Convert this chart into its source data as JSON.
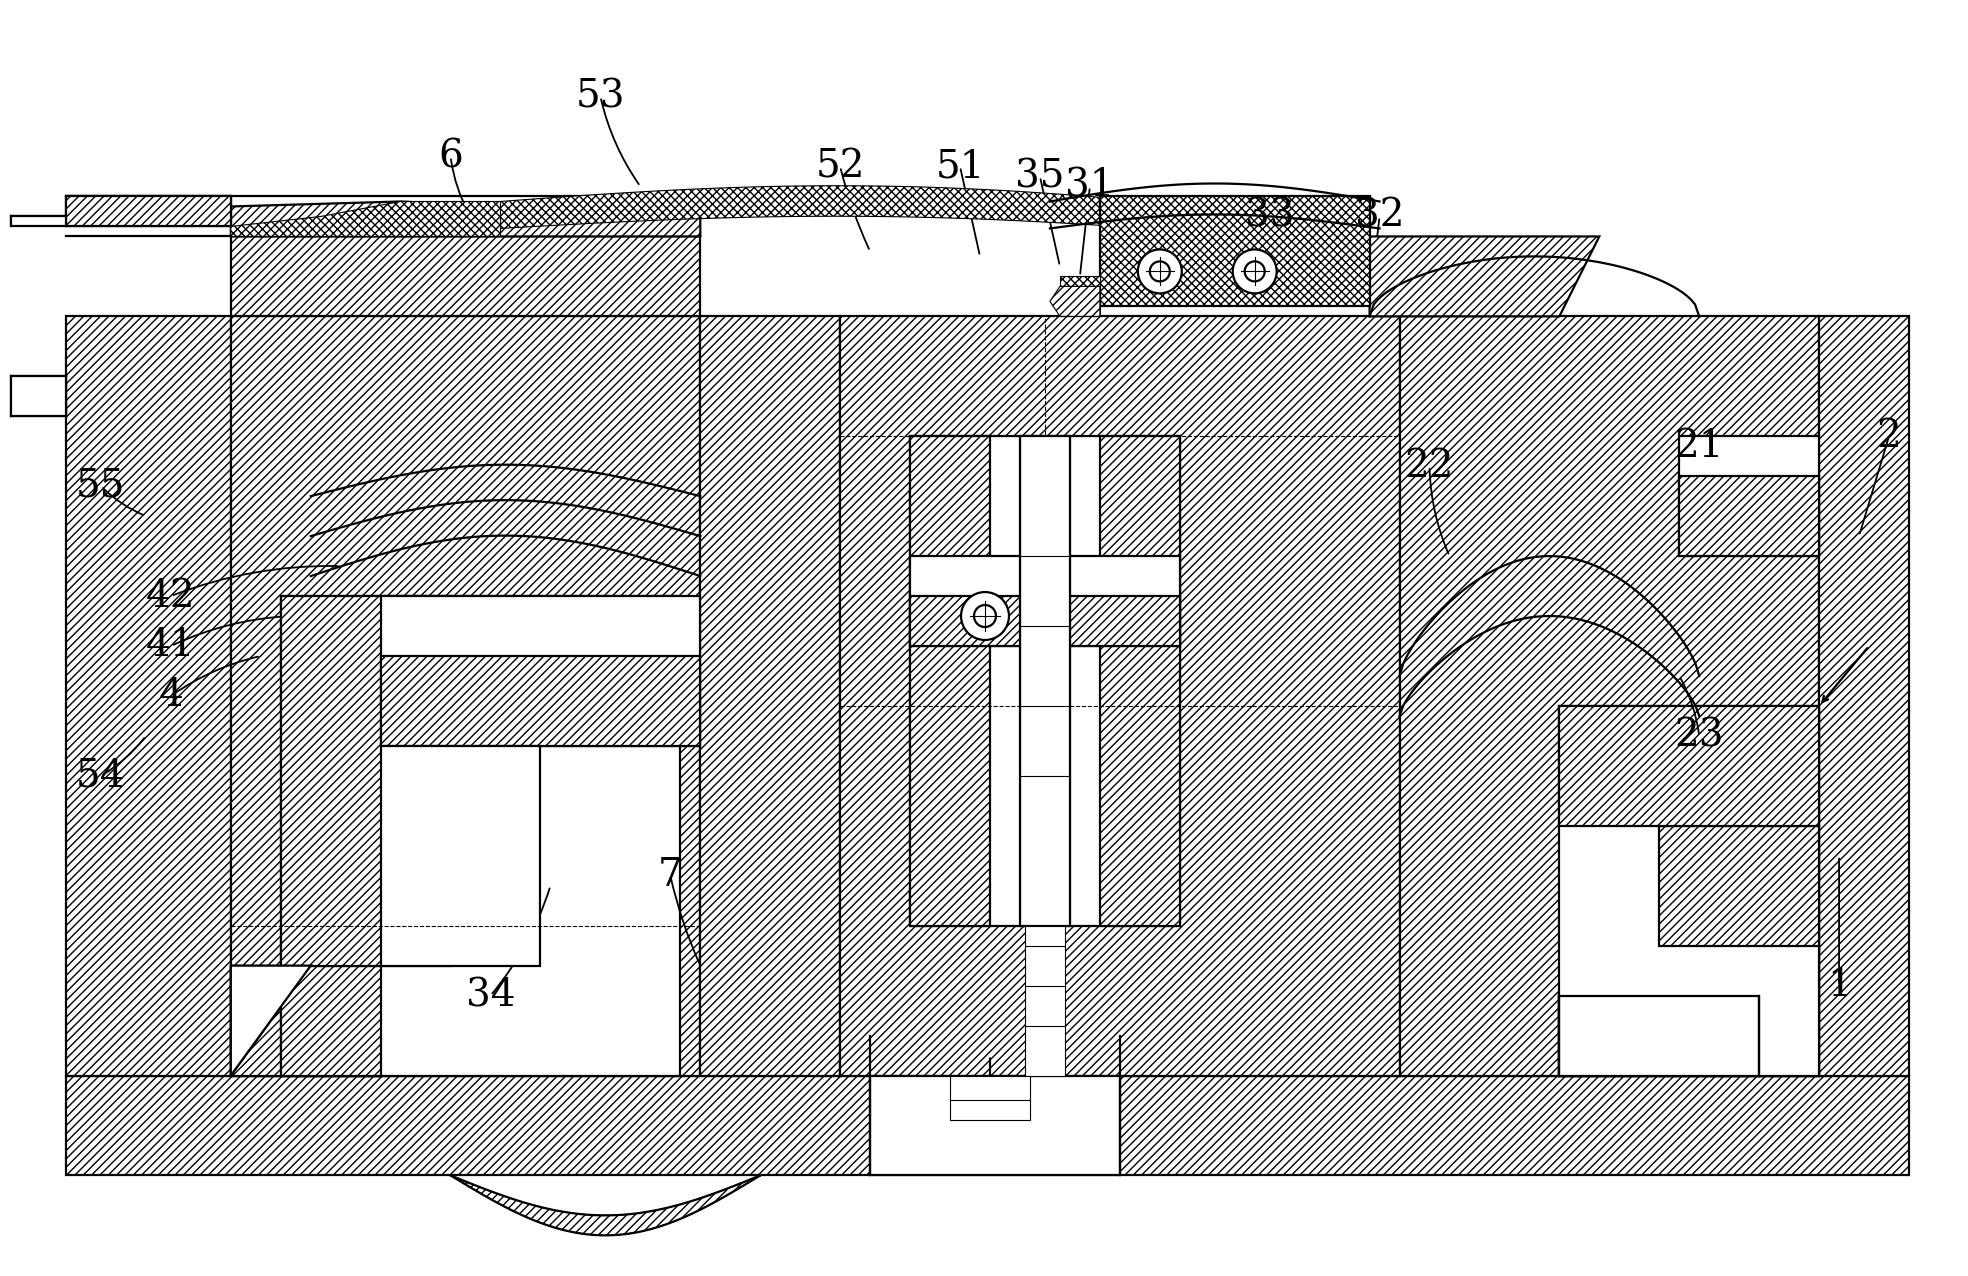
{
  "bg_color": "#ffffff",
  "lw_main": 1.6,
  "lw_thin": 0.8,
  "fs": 28,
  "fig_width": 19.68,
  "fig_height": 12.76,
  "labels": [
    [
      "1",
      1840,
      290,
      1840,
      420,
      0.0
    ],
    [
      "2",
      1890,
      840,
      1860,
      740,
      0.0
    ],
    [
      "21",
      1700,
      830,
      1720,
      720,
      0.0
    ],
    [
      "22",
      1430,
      810,
      1450,
      720,
      0.1
    ],
    [
      "23",
      1700,
      540,
      1680,
      600,
      0.1
    ],
    [
      "31",
      1090,
      1090,
      1080,
      1000,
      0.0
    ],
    [
      "32",
      1380,
      1060,
      1370,
      975,
      0.0
    ],
    [
      "33",
      1270,
      1060,
      1250,
      990,
      0.05
    ],
    [
      "34",
      490,
      280,
      550,
      390,
      0.1
    ],
    [
      "35",
      1040,
      1100,
      1060,
      1010,
      0.0
    ],
    [
      "4",
      170,
      580,
      260,
      620,
      -0.1
    ],
    [
      "41",
      170,
      630,
      290,
      660,
      -0.1
    ],
    [
      "42",
      170,
      680,
      340,
      710,
      -0.1
    ],
    [
      "51",
      960,
      1110,
      980,
      1020,
      0.0
    ],
    [
      "52",
      840,
      1110,
      870,
      1025,
      0.05
    ],
    [
      "53",
      600,
      1180,
      640,
      1090,
      0.1
    ],
    [
      "54",
      100,
      500,
      145,
      540,
      0.1
    ],
    [
      "55",
      100,
      790,
      145,
      760,
      0.1
    ],
    [
      "6",
      450,
      1120,
      470,
      1060,
      0.1
    ],
    [
      "7",
      670,
      400,
      700,
      310,
      0.05
    ]
  ]
}
